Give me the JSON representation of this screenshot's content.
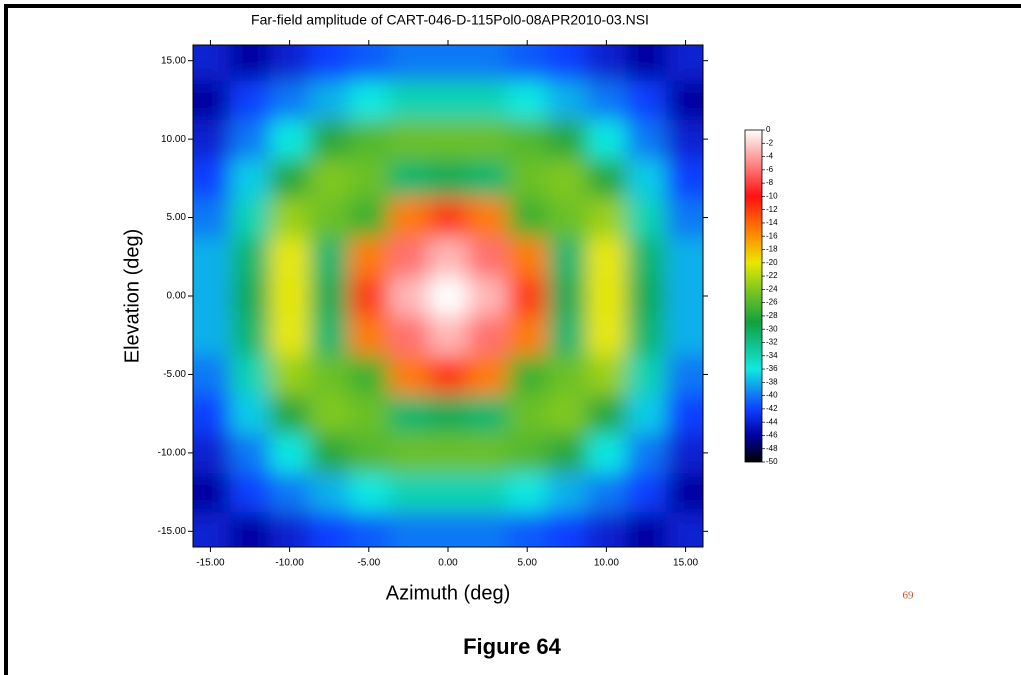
{
  "chart_data": {
    "type": "heatmap",
    "title": "Far-field amplitude of CART-046-D-115Pol0-08APR2010-03.NSI",
    "x_label": "Azimuth (deg)",
    "y_label": "Elevation (deg)",
    "x": [
      -15,
      -12.5,
      -10,
      -7.5,
      -5,
      -2.5,
      0,
      2.5,
      5,
      7.5,
      10,
      12.5,
      15
    ],
    "y": [
      -15,
      -12.5,
      -10,
      -7.5,
      -5,
      -2.5,
      0,
      2.5,
      5,
      7.5,
      10,
      12.5,
      15
    ],
    "z": [
      [
        -44,
        -46,
        -44,
        -42,
        -41,
        -40,
        -40,
        -40,
        -41,
        -42,
        -44,
        -46,
        -44
      ],
      [
        -46,
        -42,
        -40,
        -38,
        -36,
        -34,
        -34,
        -34,
        -36,
        -38,
        -40,
        -42,
        -46
      ],
      [
        -44,
        -40,
        -36,
        -28,
        -26,
        -25,
        -25,
        -25,
        -26,
        -28,
        -36,
        -40,
        -44
      ],
      [
        -42,
        -37,
        -28,
        -24,
        -25,
        -31,
        -30,
        -31,
        -25,
        -24,
        -28,
        -37,
        -42
      ],
      [
        -40,
        -34,
        -23,
        -25,
        -27,
        -15,
        -12,
        -15,
        -27,
        -25,
        -23,
        -34,
        -40
      ],
      [
        -38,
        -31,
        -20,
        -31,
        -15,
        -6,
        -3,
        -6,
        -15,
        -31,
        -20,
        -31,
        -38
      ],
      [
        -38,
        -30,
        -20,
        -30,
        -12,
        -3,
        0,
        -3,
        -12,
        -30,
        -20,
        -30,
        -38
      ],
      [
        -38,
        -31,
        -20,
        -31,
        -15,
        -6,
        -3,
        -6,
        -15,
        -31,
        -20,
        -31,
        -38
      ],
      [
        -40,
        -34,
        -23,
        -25,
        -27,
        -15,
        -12,
        -15,
        -27,
        -25,
        -23,
        -34,
        -40
      ],
      [
        -42,
        -37,
        -28,
        -24,
        -25,
        -31,
        -30,
        -31,
        -25,
        -24,
        -28,
        -37,
        -42
      ],
      [
        -44,
        -40,
        -36,
        -28,
        -26,
        -25,
        -25,
        -25,
        -26,
        -28,
        -36,
        -40,
        -44
      ],
      [
        -46,
        -42,
        -40,
        -38,
        -36,
        -34,
        -34,
        -34,
        -36,
        -38,
        -40,
        -42,
        -46
      ],
      [
        -44,
        -46,
        -44,
        -42,
        -41,
        -40,
        -40,
        -40,
        -41,
        -42,
        -44,
        -46,
        -44
      ]
    ],
    "xlim": [
      -16.1,
      16.1
    ],
    "ylim": [
      -16,
      16
    ],
    "xticks": [
      {
        "value": -15,
        "label": "-15.00"
      },
      {
        "value": -10,
        "label": "-10.00"
      },
      {
        "value": -5,
        "label": "-5.00"
      },
      {
        "value": 0,
        "label": "0.00"
      },
      {
        "value": 5,
        "label": "5.00"
      },
      {
        "value": 10,
        "label": "10.00"
      },
      {
        "value": 15,
        "label": "15.00"
      }
    ],
    "yticks": [
      {
        "value": -15,
        "label": "-15.00"
      },
      {
        "value": -10,
        "label": "-10.00"
      },
      {
        "value": -5,
        "label": "-5.00"
      },
      {
        "value": 0,
        "label": "0.00"
      },
      {
        "value": 5,
        "label": "5.00"
      },
      {
        "value": 10,
        "label": "10.00"
      },
      {
        "value": 15,
        "label": "15.00"
      }
    ],
    "zlim": [
      -50,
      0
    ],
    "zticks": [
      0,
      -2,
      -4,
      -6,
      -8,
      -10,
      -12,
      -14,
      -16,
      -18,
      -20,
      -22,
      -24,
      -26,
      -28,
      -30,
      -32,
      -34,
      -36,
      -38,
      -40,
      -42,
      -44,
      -46,
      -48,
      -50
    ],
    "colorscale": [
      [
        0,
        "#ffffff"
      ],
      [
        -10,
        "#ff1010"
      ],
      [
        -16,
        "#ff9000"
      ],
      [
        -20,
        "#e8e800"
      ],
      [
        -24,
        "#80c820"
      ],
      [
        -29,
        "#10a040"
      ],
      [
        -36,
        "#10e8e0"
      ],
      [
        -42,
        "#1040ff"
      ],
      [
        -46,
        "#0000a0"
      ],
      [
        -50,
        "#000000"
      ]
    ]
  },
  "page_number": "69",
  "caption": "Figure 64"
}
